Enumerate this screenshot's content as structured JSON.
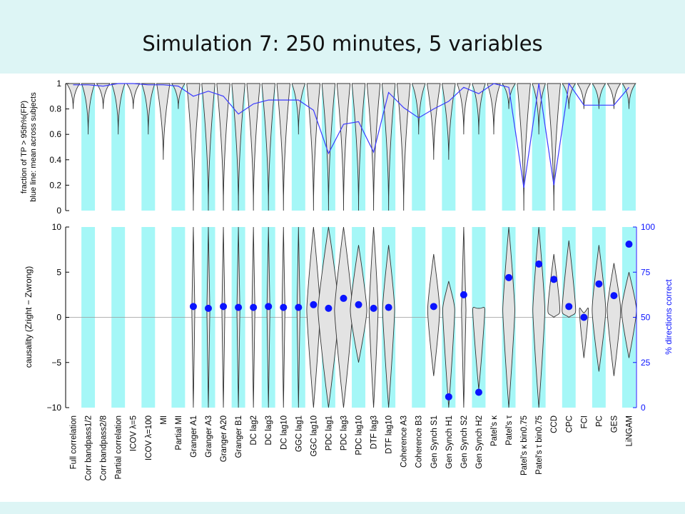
{
  "slide_title": "Simulation 7: 250 minutes, 5 variables",
  "chart_data": [
    {
      "type": "violin",
      "panel": "top",
      "ylabel_lines": [
        "fraction of TP > 95th%(FP)",
        "blue line: mean across subjects"
      ],
      "ylim": [
        0,
        1
      ],
      "yticks": [
        0,
        0.2,
        0.4,
        0.6,
        0.8,
        1
      ],
      "ytick_labels": [
        "0",
        "0.2",
        "0.4",
        "0.6",
        "0.8",
        "1"
      ],
      "mean_line_color": "#3a3aff",
      "violin_fill": "#e3e3e3",
      "band_color": "#a5f7f7",
      "series": [
        {
          "name": "Full correlation",
          "mean": 0.99,
          "min": 0.8
        },
        {
          "name": "Corr bandpass1/2",
          "mean": 0.99,
          "min": 0.6
        },
        {
          "name": "Corr bandpass2/8",
          "mean": 0.98,
          "min": 0.8
        },
        {
          "name": "Partial correlation",
          "mean": 1.0,
          "min": 0.6
        },
        {
          "name": "ICOV λ=5",
          "mean": 1.0,
          "min": 0.8
        },
        {
          "name": "ICOV λ=100",
          "mean": 0.99,
          "min": 0.6
        },
        {
          "name": "MI",
          "mean": 0.99,
          "min": 0.4
        },
        {
          "name": "Partial MI",
          "mean": 0.98,
          "min": 0.8
        },
        {
          "name": "Granger A1",
          "mean": 0.9,
          "min": 0
        },
        {
          "name": "Granger A3",
          "mean": 0.94,
          "min": 0
        },
        {
          "name": "Granger A20",
          "mean": 0.9,
          "min": 0
        },
        {
          "name": "Granger B1",
          "mean": 0.76,
          "min": 0
        },
        {
          "name": "DC lag2",
          "mean": 0.84,
          "min": 0
        },
        {
          "name": "DC lag3",
          "mean": 0.87,
          "min": 0
        },
        {
          "name": "DC lag10",
          "mean": 0.87,
          "min": 0
        },
        {
          "name": "GGC lag1",
          "mean": 0.87,
          "min": 0.6
        },
        {
          "name": "GGC lag10",
          "mean": 0.79,
          "min": 0
        },
        {
          "name": "PDC lag1",
          "mean": 0.45,
          "min": 0
        },
        {
          "name": "PDC lag3",
          "mean": 0.68,
          "min": 0
        },
        {
          "name": "PDC lag10",
          "mean": 0.7,
          "min": 0
        },
        {
          "name": "DTF lag3",
          "mean": 0.46,
          "min": 0
        },
        {
          "name": "DTF lag10",
          "mean": 0.93,
          "min": 0
        },
        {
          "name": "Coherence A3",
          "mean": 0.81,
          "min": 0
        },
        {
          "name": "Coherence B3",
          "mean": 0.73,
          "min": 0.6
        },
        {
          "name": "Gen Synch S1",
          "mean": 0.8,
          "min": 0.4
        },
        {
          "name": "Gen Synch H1",
          "mean": 0.86,
          "min": 0.4
        },
        {
          "name": "Gen Synch S2",
          "mean": 0.97,
          "min": 0.6
        },
        {
          "name": "Gen Synch H2",
          "mean": 0.92,
          "min": 0.6
        },
        {
          "name": "Patel's κ",
          "mean": 1.0,
          "min": 0.6
        },
        {
          "name": "Patel's τ",
          "mean": 0.97,
          "min": 0.8
        },
        {
          "name": "Patel's κ bin0.75",
          "mean": 0.18,
          "min": 0
        },
        {
          "name": "Patel's τ bin0.75",
          "mean": 1.0,
          "min": 0.6
        },
        {
          "name": "CCD",
          "mean": 0.2,
          "min": 0
        },
        {
          "name": "CPC",
          "mean": 1.0,
          "min": 0.8
        },
        {
          "name": "FCI",
          "mean": 0.83,
          "min": 0.8
        },
        {
          "name": "PC",
          "mean": 0.83,
          "min": 0.8
        },
        {
          "name": "GES",
          "mean": 0.83,
          "min": 0.8
        },
        {
          "name": "LiNGAM",
          "mean": 0.97,
          "min": 0.8
        }
      ]
    },
    {
      "type": "violin",
      "panel": "bottom",
      "ylabel": "causality (Zright − Zwrong)",
      "ylim": [
        -10,
        10
      ],
      "yticks": [
        -10,
        -5,
        0,
        5,
        10
      ],
      "ytick_labels": [
        "−10",
        "−5",
        "0",
        "5",
        "10"
      ],
      "ylabel_right": "% directions correct",
      "ylim_right": [
        0,
        100
      ],
      "yticks_right": [
        0,
        25,
        50,
        75,
        100
      ],
      "ytick_labels_right": [
        "0",
        "25",
        "50",
        "75",
        "100"
      ],
      "dot_color": "#0b14ff",
      "points": [
        {
          "name": "Granger A1",
          "pct": 56
        },
        {
          "name": "Granger A3",
          "pct": 55
        },
        {
          "name": "Granger A20",
          "pct": 56
        },
        {
          "name": "Granger B1",
          "pct": 55.5
        },
        {
          "name": "DC lag2",
          "pct": 55.5
        },
        {
          "name": "DC lag3",
          "pct": 56
        },
        {
          "name": "DC lag10",
          "pct": 55.5
        },
        {
          "name": "GGC lag1",
          "pct": 55.5
        },
        {
          "name": "GGC lag10",
          "pct": 57
        },
        {
          "name": "PDC lag1",
          "pct": 55
        },
        {
          "name": "PDC lag3",
          "pct": 60.5
        },
        {
          "name": "PDC lag10",
          "pct": 57
        },
        {
          "name": "DTF lag3",
          "pct": 55
        },
        {
          "name": "DTF lag10",
          "pct": 55.5
        },
        {
          "name": "Gen Synch S1",
          "pct": 56
        },
        {
          "name": "Gen Synch H1",
          "pct": 6
        },
        {
          "name": "Gen Synch S2",
          "pct": 62.5
        },
        {
          "name": "Gen Synch H2",
          "pct": 8.5
        },
        {
          "name": "Patel's τ",
          "pct": 72
        },
        {
          "name": "Patel's τ bin0.75",
          "pct": 79.5
        },
        {
          "name": "CCD",
          "pct": 71
        },
        {
          "name": "CPC",
          "pct": 56
        },
        {
          "name": "FCI",
          "pct": 50
        },
        {
          "name": "PC",
          "pct": 68.5
        },
        {
          "name": "GES",
          "pct": 62
        },
        {
          "name": "LiNGAM",
          "pct": 90.5
        }
      ],
      "violins": [
        {
          "name": "Granger A1",
          "lo": -10,
          "hi": 10,
          "w": 0.1
        },
        {
          "name": "Granger A3",
          "lo": -10,
          "hi": 10,
          "w": 0.1
        },
        {
          "name": "Granger A20",
          "lo": -10,
          "hi": 10,
          "w": 0.1
        },
        {
          "name": "Granger B1",
          "lo": -10,
          "hi": 10,
          "w": 0.1
        },
        {
          "name": "DC lag2",
          "lo": -10,
          "hi": 10,
          "w": 0.1
        },
        {
          "name": "DC lag3",
          "lo": -10,
          "hi": 10,
          "w": 0.1
        },
        {
          "name": "DC lag10",
          "lo": -10,
          "hi": 10,
          "w": 0.1
        },
        {
          "name": "GGC lag1",
          "lo": -10,
          "hi": 10,
          "w": 0.1
        },
        {
          "name": "GGC lag10",
          "lo": -10,
          "hi": 10,
          "w": 0.45
        },
        {
          "name": "PDC lag1",
          "lo": -10,
          "hi": 10,
          "w": 0.7
        },
        {
          "name": "PDC lag3",
          "lo": -10,
          "hi": 10,
          "w": 0.6
        },
        {
          "name": "PDC lag10",
          "lo": -5,
          "hi": 8,
          "w": 0.55
        },
        {
          "name": "DTF lag3",
          "lo": -10,
          "hi": 10,
          "w": 0.3
        },
        {
          "name": "DTF lag10",
          "lo": -10,
          "hi": 8,
          "w": 0.4
        },
        {
          "name": "Gen Synch S1",
          "lo": -6.5,
          "hi": 7,
          "w": 0.4
        },
        {
          "name": "Gen Synch H1",
          "lo": -10,
          "hi": 4,
          "w": 0.4
        },
        {
          "name": "Gen Synch S2",
          "lo": -10,
          "hi": 10,
          "w": 0.15
        },
        {
          "name": "Gen Synch H2",
          "lo": -8,
          "hi": 1,
          "w": 0.4
        },
        {
          "name": "Patel's τ",
          "lo": -10,
          "hi": 10,
          "w": 0.4
        },
        {
          "name": "Patel's τ bin0.75",
          "lo": -10,
          "hi": 10,
          "w": 0.4
        },
        {
          "name": "CCD",
          "lo": 0,
          "hi": 7,
          "w": 0.4
        },
        {
          "name": "CPC",
          "lo": 0,
          "hi": 8.5,
          "w": 0.45
        },
        {
          "name": "FCI",
          "lo": -4.5,
          "hi": 0.5,
          "w": 0.3
        },
        {
          "name": "PC",
          "lo": -6,
          "hi": 8,
          "w": 0.45
        },
        {
          "name": "GES",
          "lo": -6.5,
          "hi": 6,
          "w": 0.45
        },
        {
          "name": "LiNGAM",
          "lo": -4.5,
          "hi": 5,
          "w": 0.5
        }
      ]
    }
  ]
}
